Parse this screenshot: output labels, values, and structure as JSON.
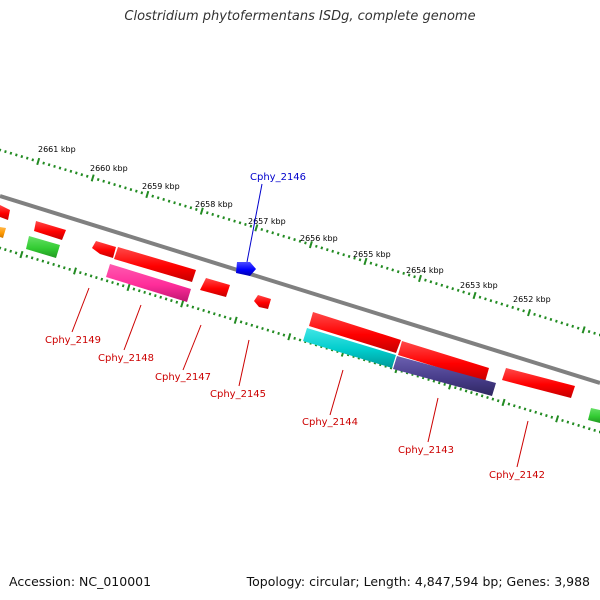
{
  "title": "Clostridium phytofermentans ISDg, complete genome",
  "footer": {
    "accession": "Accession: NC_010001",
    "topology": "Topology: circular; Length: 4,847,594 bp; Genes: 3,988"
  },
  "scale_labels": [
    "2661 kbp",
    "2660 kbp",
    "2659 kbp",
    "2658 kbp",
    "2657 kbp",
    "2656 kbp",
    "2655 kbp",
    "2654 kbp",
    "2653 kbp",
    "2652 kbp"
  ],
  "gene_labels": {
    "forward": [
      "Cphy_2146"
    ],
    "reverse": [
      "Cphy_2149",
      "Cphy_2148",
      "Cphy_2147",
      "Cphy_2145",
      "Cphy_2144",
      "Cphy_2143",
      "Cphy_2142"
    ]
  },
  "colors": {
    "backbone": "#808080",
    "tick": "#228b22",
    "cds_red": "#ff0000",
    "cds_pink": "#ff2d9a",
    "cds_cyan": "#00cccc",
    "cds_purple": "#483d8b",
    "cds_green": "#33cc33",
    "cds_orange": "#ff9900",
    "cds_blue": "#0000ff",
    "label_reverse": "#cc0000",
    "label_forward": "#0000cc"
  }
}
